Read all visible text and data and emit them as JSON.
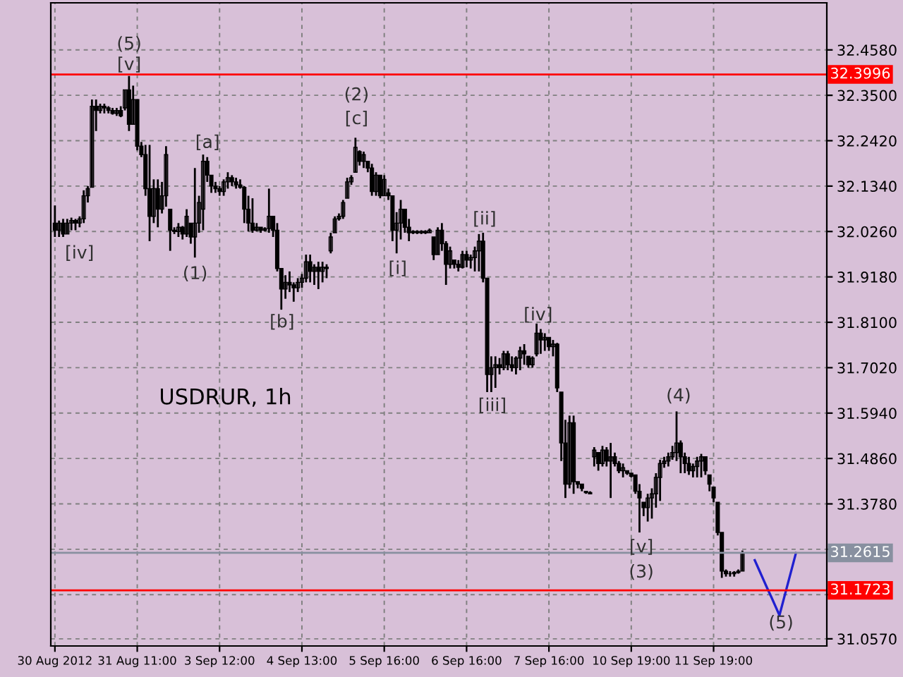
{
  "chart_data": {
    "type": "candlestick",
    "categories": [
      "30 Aug 2012",
      null,
      null,
      null,
      null,
      null,
      null,
      null,
      null,
      null,
      null,
      null,
      null,
      null,
      null,
      null,
      null,
      null,
      null,
      null,
      "31 Aug 11:00",
      null,
      null,
      null,
      null,
      null,
      null,
      null,
      null,
      null,
      null,
      null,
      null,
      null,
      null,
      null,
      null,
      null,
      null,
      null,
      "3 Sep 12:00",
      null,
      null,
      null,
      null,
      null,
      null,
      null,
      null,
      null,
      null,
      null,
      null,
      null,
      null,
      null,
      null,
      null,
      null,
      null,
      "4 Sep 13:00",
      null,
      null,
      null,
      null,
      null,
      null,
      null,
      null,
      null,
      null,
      null,
      null,
      null,
      null,
      null,
      null,
      null,
      null,
      null,
      "5 Sep 16:00",
      null,
      null,
      null,
      null,
      null,
      null,
      null,
      null,
      null,
      null,
      null,
      null,
      null,
      null,
      null,
      null,
      null,
      null,
      null,
      "6 Sep 16:00",
      null,
      null,
      null,
      null,
      null,
      null,
      null,
      null,
      null,
      null,
      null,
      null,
      null,
      null,
      null,
      null,
      null,
      null,
      null,
      "7 Sep 16:00",
      null,
      null,
      null,
      null,
      null,
      null,
      null,
      null,
      null,
      null,
      null,
      null,
      null,
      null,
      null,
      null,
      null,
      null,
      null,
      "10 Sep 19:00",
      null,
      null,
      null,
      null,
      null,
      null,
      null,
      null,
      null,
      null,
      null,
      null,
      null,
      null,
      null,
      null,
      null,
      null,
      null,
      "11 Sep 19:00",
      null,
      null,
      null,
      null,
      null,
      null,
      null,
      null,
      null,
      null,
      null,
      null,
      null,
      null,
      null,
      null,
      null,
      null,
      null,
      null,
      null,
      null,
      null,
      null,
      null,
      null,
      null
    ],
    "ohlc": [
      [
        32.046,
        32.088,
        32.013,
        32.029
      ],
      [
        32.029,
        32.052,
        32.013,
        32.046
      ],
      [
        32.046,
        32.056,
        32.013,
        32.02
      ],
      [
        32.02,
        32.056,
        32.02,
        32.046
      ],
      [
        32.046,
        32.059,
        32.029,
        32.052
      ],
      [
        32.052,
        32.056,
        32.029,
        32.046
      ],
      [
        32.046,
        32.062,
        32.036,
        32.056
      ],
      [
        32.056,
        32.124,
        32.046,
        32.111
      ],
      [
        32.111,
        32.134,
        32.095,
        32.128
      ],
      [
        32.131,
        32.34,
        32.131,
        32.324
      ],
      [
        32.324,
        32.34,
        32.265,
        32.314
      ],
      [
        32.314,
        32.33,
        32.307,
        32.324
      ],
      [
        32.324,
        32.33,
        32.307,
        32.32
      ],
      [
        32.32,
        32.324,
        32.307,
        32.314
      ],
      [
        32.314,
        32.32,
        32.304,
        32.307
      ],
      [
        32.307,
        32.32,
        32.301,
        32.314
      ],
      [
        32.314,
        32.324,
        32.298,
        32.301
      ],
      [
        32.32,
        32.363,
        32.314,
        32.363
      ],
      [
        32.363,
        32.396,
        32.265,
        32.281
      ],
      [
        32.281,
        32.373,
        32.281,
        32.34
      ],
      [
        32.34,
        32.34,
        32.219,
        32.229
      ],
      [
        32.229,
        32.239,
        32.203,
        32.209
      ],
      [
        32.209,
        32.232,
        32.111,
        32.128
      ],
      [
        32.128,
        32.232,
        32.003,
        32.062
      ],
      [
        32.062,
        32.15,
        32.046,
        32.128
      ],
      [
        32.128,
        32.15,
        32.036,
        32.079
      ],
      [
        32.079,
        32.144,
        32.069,
        32.111
      ],
      [
        32.111,
        32.229,
        32.085,
        32.209
      ],
      [
        32.079,
        32.079,
        31.98,
        32.029
      ],
      [
        32.029,
        32.036,
        32.02,
        32.026
      ],
      [
        32.026,
        32.046,
        32.013,
        32.036
      ],
      [
        32.036,
        32.039,
        32.007,
        32.02
      ],
      [
        32.02,
        32.079,
        32.013,
        32.062
      ],
      [
        32.046,
        32.046,
        31.997,
        32.013
      ],
      [
        32.013,
        32.177,
        31.964,
        32.046
      ],
      [
        32.046,
        32.111,
        32.023,
        32.095
      ],
      [
        32.079,
        32.209,
        32.029,
        32.193
      ],
      [
        32.193,
        32.203,
        32.144,
        32.16
      ],
      [
        32.16,
        32.16,
        32.118,
        32.134
      ],
      [
        32.134,
        32.144,
        32.118,
        32.128
      ],
      [
        32.128,
        32.134,
        32.111,
        32.121
      ],
      [
        32.121,
        32.15,
        32.111,
        32.144
      ],
      [
        32.144,
        32.167,
        32.128,
        32.154
      ],
      [
        32.154,
        32.16,
        32.134,
        32.144
      ],
      [
        32.144,
        32.154,
        32.128,
        32.137
      ],
      [
        32.137,
        32.15,
        32.128,
        32.131
      ],
      [
        32.131,
        32.134,
        32.046,
        32.079
      ],
      [
        32.079,
        32.111,
        32.026,
        32.046
      ],
      [
        32.046,
        32.105,
        32.023,
        32.029
      ],
      [
        32.029,
        32.046,
        32.026,
        32.036
      ],
      [
        32.036,
        32.036,
        32.023,
        32.029
      ],
      [
        32.029,
        32.036,
        32.026,
        32.033
      ],
      [
        32.033,
        32.128,
        32.023,
        32.062
      ],
      [
        32.062,
        32.062,
        32.013,
        32.029
      ],
      [
        32.029,
        32.046,
        31.931,
        31.938
      ],
      [
        31.938,
        31.938,
        31.84,
        31.889
      ],
      [
        31.889,
        31.922,
        31.866,
        31.905
      ],
      [
        31.905,
        31.931,
        31.882,
        31.899
      ],
      [
        31.899,
        31.905,
        31.859,
        31.892
      ],
      [
        31.892,
        31.915,
        31.882,
        31.905
      ],
      [
        31.905,
        31.925,
        31.892,
        31.915
      ],
      [
        31.915,
        31.971,
        31.905,
        31.954
      ],
      [
        31.954,
        31.971,
        31.905,
        31.931
      ],
      [
        31.931,
        31.948,
        31.899,
        31.941
      ],
      [
        31.941,
        31.954,
        31.889,
        31.931
      ],
      [
        31.931,
        31.954,
        31.905,
        31.941
      ],
      [
        31.941,
        31.948,
        31.915,
        31.938
      ],
      [
        31.98,
        32.023,
        31.974,
        32.013
      ],
      [
        32.023,
        32.062,
        32.023,
        32.056
      ],
      [
        32.056,
        32.069,
        32.052,
        32.062
      ],
      [
        32.062,
        32.101,
        32.056,
        32.095
      ],
      [
        32.105,
        32.154,
        32.105,
        32.144
      ],
      [
        32.144,
        32.16,
        32.137,
        32.154
      ],
      [
        32.167,
        32.249,
        32.167,
        32.226
      ],
      [
        32.216,
        32.219,
        32.183,
        32.193
      ],
      [
        32.193,
        32.216,
        32.177,
        32.209
      ],
      [
        32.193,
        32.193,
        32.167,
        32.177
      ],
      [
        32.177,
        32.187,
        32.111,
        32.121
      ],
      [
        32.121,
        32.167,
        32.111,
        32.16
      ],
      [
        32.16,
        32.16,
        32.105,
        32.111
      ],
      [
        32.111,
        32.16,
        32.111,
        32.15
      ],
      [
        32.118,
        32.128,
        32.101,
        32.111
      ],
      [
        32.111,
        32.111,
        32.003,
        32.029
      ],
      [
        32.029,
        32.072,
        31.974,
        32.046
      ],
      [
        32.046,
        32.101,
        32.007,
        32.079
      ],
      [
        32.079,
        32.079,
        32.023,
        32.036
      ],
      [
        32.036,
        32.056,
        32.003,
        32.023
      ],
      [
        32.023,
        32.029,
        32.02,
        32.026
      ],
      [
        32.026,
        32.029,
        32.02,
        32.023
      ],
      [
        32.023,
        32.029,
        32.02,
        32.026
      ],
      [
        32.026,
        32.029,
        32.02,
        32.023
      ],
      [
        32.023,
        32.033,
        32.023,
        32.029
      ],
      [
        32.013,
        32.013,
        31.958,
        31.971
      ],
      [
        31.971,
        32.036,
        31.971,
        32.029
      ],
      [
        32.029,
        32.046,
        31.98,
        31.997
      ],
      [
        31.997,
        32.003,
        31.899,
        31.948
      ],
      [
        31.948,
        31.99,
        31.938,
        31.98
      ],
      [
        31.958,
        31.958,
        31.938,
        31.948
      ],
      [
        31.948,
        31.958,
        31.931,
        31.941
      ],
      [
        31.941,
        31.98,
        31.938,
        31.971
      ],
      [
        31.971,
        31.98,
        31.941,
        31.958
      ],
      [
        31.958,
        31.971,
        31.938,
        31.964
      ],
      [
        31.964,
        31.99,
        31.931,
        31.98
      ],
      [
        31.98,
        32.02,
        31.931,
        32.003
      ],
      [
        32.003,
        32.023,
        31.905,
        31.915
      ],
      [
        31.915,
        31.915,
        31.644,
        31.686
      ],
      [
        31.686,
        31.729,
        31.644,
        31.702
      ],
      [
        31.702,
        31.729,
        31.654,
        31.709
      ],
      [
        31.709,
        31.725,
        31.686,
        31.702
      ],
      [
        31.702,
        31.742,
        31.696,
        31.735
      ],
      [
        31.735,
        31.742,
        31.696,
        31.709
      ],
      [
        31.709,
        31.729,
        31.693,
        31.702
      ],
      [
        31.702,
        31.729,
        31.686,
        31.725
      ],
      [
        31.725,
        31.752,
        31.696,
        31.742
      ],
      [
        31.742,
        31.758,
        31.709,
        31.735
      ],
      [
        31.729,
        31.729,
        31.702,
        31.709
      ],
      [
        31.709,
        31.729,
        31.702,
        31.725
      ],
      [
        31.735,
        31.807,
        31.729,
        31.784
      ],
      [
        31.784,
        31.794,
        31.735,
        31.768
      ],
      [
        31.768,
        31.784,
        31.742,
        31.774
      ],
      [
        31.774,
        31.774,
        31.742,
        31.752
      ],
      [
        31.752,
        31.768,
        31.729,
        31.758
      ],
      [
        31.758,
        31.761,
        31.644,
        31.654
      ],
      [
        31.644,
        31.644,
        31.48,
        31.523
      ],
      [
        31.523,
        31.578,
        31.392,
        31.425
      ],
      [
        31.425,
        31.588,
        31.415,
        31.571
      ],
      [
        31.571,
        31.588,
        31.402,
        31.431
      ],
      [
        31.431,
        31.431,
        31.415,
        31.425
      ],
      [
        31.425,
        31.425,
        31.408,
        31.415
      ],
      [
        31.408,
        31.408,
        31.402,
        31.405
      ],
      [
        31.405,
        31.408,
        31.402,
        31.402
      ],
      [
        31.49,
        31.513,
        31.467,
        31.506
      ],
      [
        31.5,
        31.5,
        31.457,
        31.474
      ],
      [
        31.474,
        31.516,
        31.467,
        31.506
      ],
      [
        31.506,
        31.513,
        31.467,
        31.48
      ],
      [
        31.48,
        31.523,
        31.392,
        31.49
      ],
      [
        31.49,
        31.5,
        31.467,
        31.474
      ],
      [
        31.474,
        31.48,
        31.451,
        31.457
      ],
      [
        31.457,
        31.474,
        31.441,
        31.464
      ],
      [
        31.457,
        31.457,
        31.447,
        31.451
      ],
      [
        31.451,
        31.451,
        31.441,
        31.444
      ],
      [
        31.447,
        31.447,
        31.402,
        31.408
      ],
      [
        31.408,
        31.425,
        31.31,
        31.392
      ],
      [
        31.382,
        31.382,
        31.349,
        31.369
      ],
      [
        31.369,
        31.402,
        31.336,
        31.392
      ],
      [
        31.392,
        31.415,
        31.343,
        31.402
      ],
      [
        31.402,
        31.451,
        31.369,
        31.441
      ],
      [
        31.441,
        31.483,
        31.385,
        31.474
      ],
      [
        31.474,
        31.49,
        31.464,
        31.48
      ],
      [
        31.48,
        31.5,
        31.467,
        31.49
      ],
      [
        31.49,
        31.516,
        31.483,
        31.5
      ],
      [
        31.5,
        31.598,
        31.48,
        31.523
      ],
      [
        31.523,
        31.529,
        31.451,
        31.49
      ],
      [
        31.49,
        31.5,
        31.451,
        31.474
      ],
      [
        31.474,
        31.49,
        31.447,
        31.457
      ],
      [
        31.457,
        31.474,
        31.441,
        31.467
      ],
      [
        31.467,
        31.49,
        31.441,
        31.48
      ],
      [
        31.48,
        31.497,
        31.441,
        31.49
      ],
      [
        31.49,
        31.49,
        31.447,
        31.457
      ],
      [
        31.447,
        31.447,
        31.408,
        31.425
      ],
      [
        31.418,
        31.418,
        31.382,
        31.392
      ],
      [
        31.382,
        31.382,
        31.303,
        31.31
      ],
      [
        31.31,
        31.31,
        31.202,
        31.218
      ],
      [
        31.218,
        31.222,
        31.205,
        31.212
      ],
      [
        31.212,
        31.218,
        31.205,
        31.212
      ],
      [
        31.212,
        31.218,
        31.205,
        31.215
      ],
      [
        31.215,
        31.222,
        31.212,
        31.218
      ],
      [
        31.218,
        31.267,
        31.218,
        31.261
      ],
      null,
      null,
      null,
      null,
      null,
      null,
      null,
      null,
      null,
      null,
      null,
      null,
      null,
      null,
      null,
      null,
      null,
      null,
      null,
      null
    ],
    "color": "#000000",
    "series": [
      {
        "type": "line",
        "color": "#2020d0",
        "values": [
          null,
          null,
          null,
          null,
          null,
          null,
          null,
          null,
          null,
          null,
          null,
          null,
          null,
          null,
          null,
          null,
          null,
          null,
          null,
          null,
          null,
          null,
          null,
          null,
          null,
          null,
          null,
          null,
          null,
          null,
          null,
          null,
          null,
          null,
          null,
          null,
          null,
          null,
          null,
          null,
          null,
          null,
          null,
          null,
          null,
          null,
          null,
          null,
          null,
          null,
          null,
          null,
          null,
          null,
          null,
          null,
          null,
          null,
          null,
          null,
          null,
          null,
          null,
          null,
          null,
          null,
          null,
          null,
          null,
          null,
          null,
          null,
          null,
          null,
          null,
          null,
          null,
          null,
          null,
          null,
          null,
          null,
          null,
          null,
          null,
          null,
          null,
          null,
          null,
          null,
          null,
          null,
          null,
          null,
          null,
          null,
          null,
          null,
          null,
          null,
          null,
          null,
          null,
          null,
          null,
          null,
          null,
          null,
          null,
          null,
          null,
          null,
          null,
          null,
          null,
          null,
          null,
          null,
          null,
          null,
          null,
          null,
          null,
          null,
          null,
          null,
          null,
          null,
          null,
          null,
          null,
          null,
          null,
          null,
          null,
          null,
          null,
          null,
          null,
          null,
          null,
          null,
          null,
          null,
          null,
          null,
          null,
          null,
          null,
          null,
          null,
          null,
          null,
          null,
          null,
          null,
          null,
          null,
          null,
          null,
          null,
          null,
          null,
          null,
          null,
          null,
          null,
          null,
          null,
          null,
          31.244,
          31.222,
          31.2,
          31.178,
          31.157,
          31.135,
          31.113,
          31.15,
          31.187,
          31.224,
          31.261,
          null,
          null,
          null,
          null,
          null,
          null,
          null
        ]
      }
    ],
    "ylim": [
      31.04,
      32.57
    ],
    "yticks": [
      {
        "value": 32.458,
        "label": "32.4580"
      },
      {
        "value": 32.35,
        "label": "32.3500"
      },
      {
        "value": 32.242,
        "label": "32.2420"
      },
      {
        "value": 32.134,
        "label": "32.1340"
      },
      {
        "value": 32.026,
        "label": "32.0260"
      },
      {
        "value": 31.918,
        "label": "31.9180"
      },
      {
        "value": 31.81,
        "label": "31.8100"
      },
      {
        "value": 31.702,
        "label": "31.7020"
      },
      {
        "value": 31.594,
        "label": "31.5940"
      },
      {
        "value": 31.486,
        "label": "31.4860"
      },
      {
        "value": 31.378,
        "label": "31.3780"
      },
      {
        "value": 31.27,
        "label": null
      },
      {
        "value": 31.162,
        "label": null
      },
      {
        "value": 31.057,
        "label": "31.0570"
      }
    ],
    "grid": true,
    "ref_lines": [
      {
        "axis": "y",
        "value": 32.3996,
        "label": "32.3996",
        "color": "#ff0000"
      },
      {
        "axis": "y",
        "value": 31.2615,
        "label": "31.2615",
        "color": "#8890a0"
      },
      {
        "axis": "y",
        "value": 31.1723,
        "label": "31.1723",
        "color": "#ff0000"
      }
    ],
    "annotations": [
      "USDRUR, 1h",
      "[iv]",
      "(5)",
      "[v]",
      "(1)",
      "[a]",
      "[b]",
      "(2)",
      "[c]",
      "[i]",
      "[ii]",
      "[iii]",
      "[iv]",
      "[v]",
      "(3)",
      "(4)",
      "(5)"
    ]
  }
}
